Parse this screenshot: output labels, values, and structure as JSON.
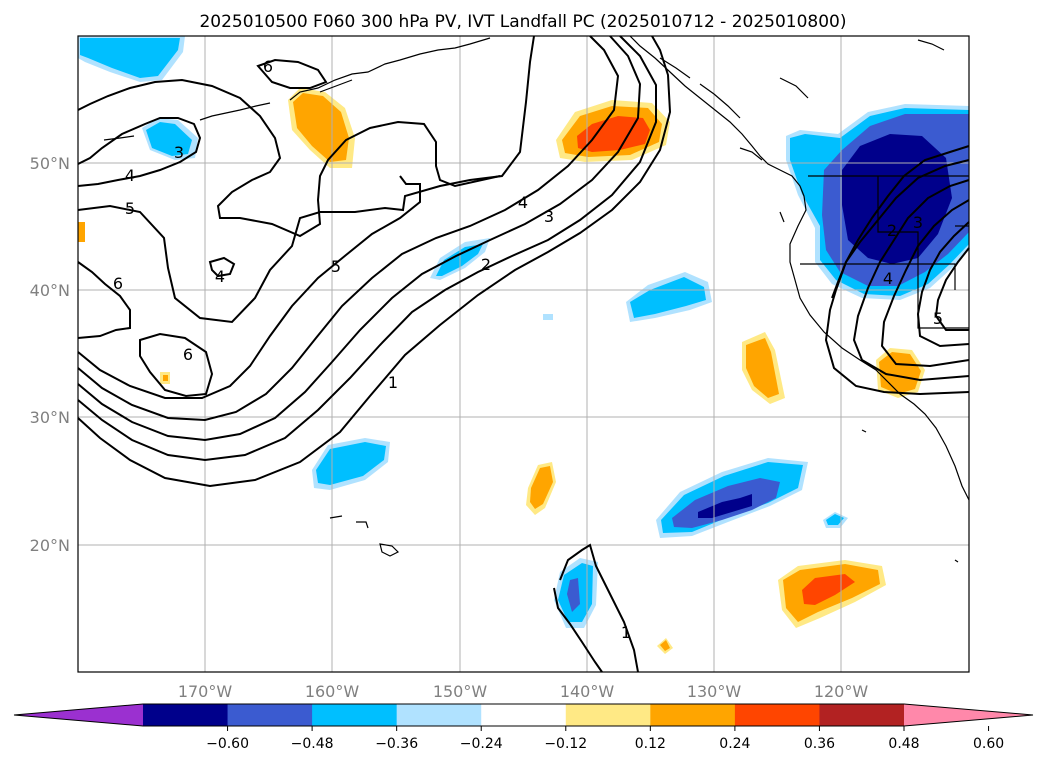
{
  "title": "2025010500 F060 300 hPa PV, IVT Landfall PC (2025010712 - 2025010800)",
  "map": {
    "lon_labels": [
      "170°W",
      "160°W",
      "150°W",
      "140°W",
      "130°W",
      "120°W"
    ],
    "lat_labels": [
      "50°N",
      "40°N",
      "30°N",
      "20°N"
    ]
  },
  "colorbar": {
    "ticks": [
      "−0.60",
      "−0.48",
      "−0.36",
      "−0.24",
      "−0.12",
      "0.12",
      "0.24",
      "0.36",
      "0.48",
      "0.60"
    ],
    "colors": [
      "#9b30d0",
      "#00008b",
      "#3b5bd0",
      "#00bfff",
      "#b0e2ff",
      "#ffffff",
      "#ffe985",
      "#ffa500",
      "#ff4500",
      "#b22222",
      "#ff88aa"
    ]
  },
  "contour_labels": [
    "6",
    "4",
    "5",
    "3",
    "6",
    "4",
    "6",
    "5",
    "4",
    "3",
    "2",
    "1",
    "1",
    "2",
    "3",
    "4",
    "5"
  ]
}
